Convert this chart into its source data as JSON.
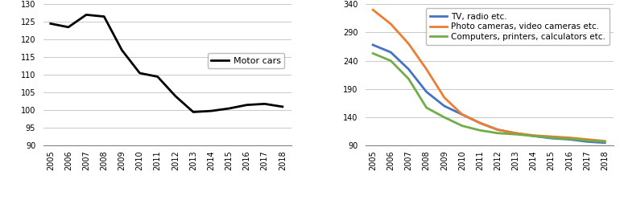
{
  "years": [
    2005,
    2006,
    2007,
    2008,
    2009,
    2010,
    2011,
    2012,
    2013,
    2014,
    2015,
    2016,
    2017,
    2018
  ],
  "motor_cars": [
    124.5,
    123.5,
    127.0,
    126.5,
    117.0,
    110.5,
    109.5,
    104.0,
    99.5,
    99.8,
    100.5,
    101.5,
    101.8,
    101.0
  ],
  "tv_radio": [
    268,
    255,
    225,
    185,
    160,
    145,
    130,
    118,
    112,
    107,
    103,
    101,
    97,
    95
  ],
  "photo_cameras": [
    330,
    305,
    270,
    225,
    175,
    145,
    130,
    118,
    112,
    108,
    106,
    104,
    101,
    98
  ],
  "computers": [
    253,
    240,
    208,
    157,
    140,
    125,
    117,
    112,
    110,
    107,
    104,
    102,
    99,
    97
  ],
  "left_ylim": [
    90,
    130
  ],
  "left_yticks": [
    90,
    95,
    100,
    105,
    110,
    115,
    120,
    125,
    130
  ],
  "right_ylim": [
    90,
    340
  ],
  "right_yticks": [
    90,
    140,
    190,
    240,
    290,
    340
  ],
  "motor_cars_color": "#000000",
  "tv_radio_color": "#4472C4",
  "photo_cameras_color": "#ED7D31",
  "computers_color": "#70AD47",
  "legend1_label": "Motor cars",
  "legend2_labels": [
    "TV, radio etc.",
    "Photo cameras, video cameras etc.",
    "Computers, printers, calculators etc."
  ],
  "line_width": 2.0,
  "figsize": [
    7.7,
    2.59
  ],
  "dpi": 100
}
